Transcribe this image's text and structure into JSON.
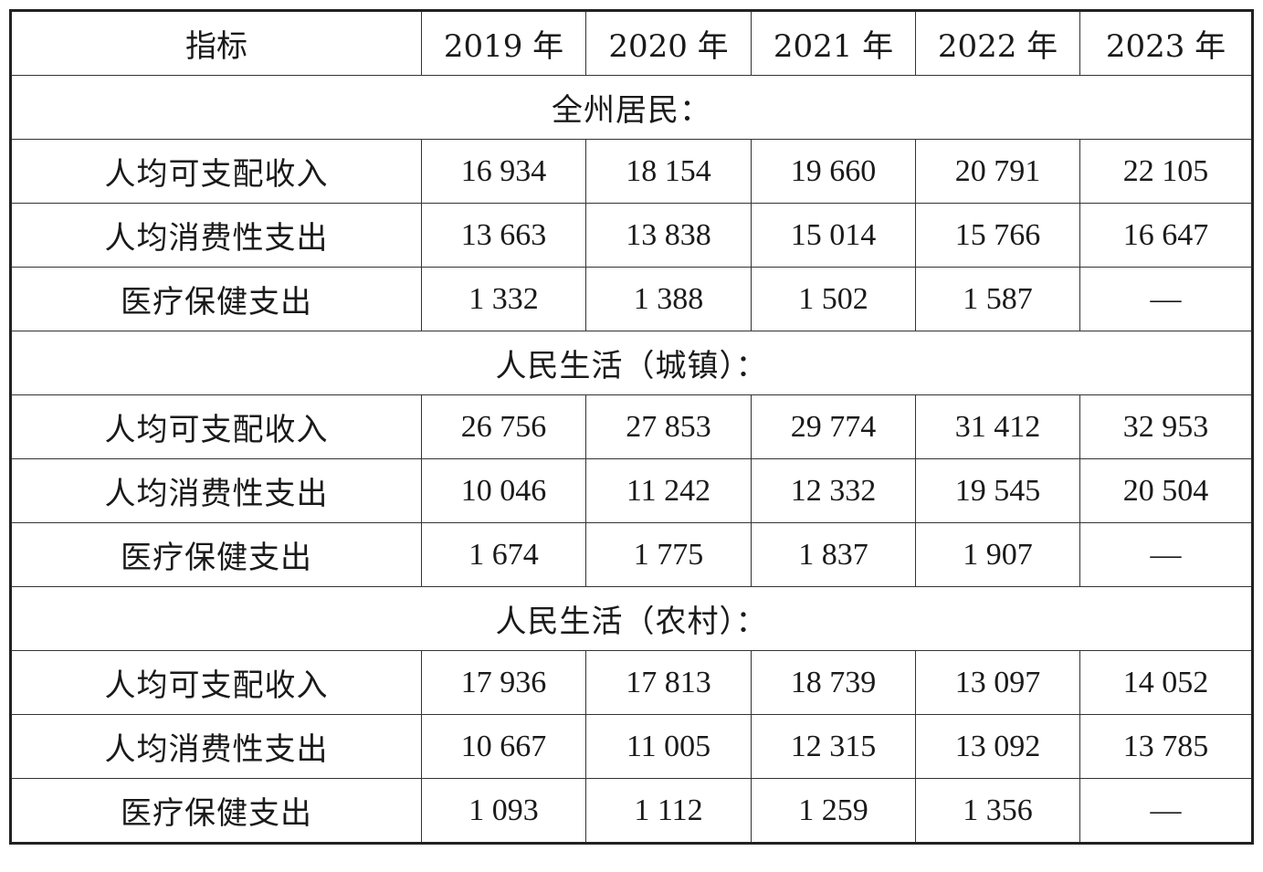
{
  "header": {
    "indicator": "指标",
    "years": [
      "2019 年",
      "2020 年",
      "2021 年",
      "2022 年",
      "2023 年"
    ]
  },
  "sections": [
    {
      "title": "全州居民：",
      "rows": [
        {
          "label": "人均可支配收入",
          "values": [
            "16 934",
            "18 154",
            "19 660",
            "20 791",
            "22 105"
          ]
        },
        {
          "label": "人均消费性支出",
          "values": [
            "13 663",
            "13 838",
            "15 014",
            "15 766",
            "16 647"
          ]
        },
        {
          "label": "医疗保健支出",
          "values": [
            "1 332",
            "1 388",
            "1 502",
            "1 587",
            "—"
          ]
        }
      ]
    },
    {
      "title": "人民生活（城镇）：",
      "rows": [
        {
          "label": "人均可支配收入",
          "values": [
            "26 756",
            "27 853",
            "29 774",
            "31 412",
            "32 953"
          ]
        },
        {
          "label": "人均消费性支出",
          "values": [
            "10 046",
            "11 242",
            "12 332",
            "19 545",
            "20 504"
          ]
        },
        {
          "label": "医疗保健支出",
          "values": [
            "1 674",
            "1 775",
            "1 837",
            "1 907",
            "—"
          ]
        }
      ]
    },
    {
      "title": "人民生活（农村）：",
      "rows": [
        {
          "label": "人均可支配收入",
          "values": [
            "17 936",
            "17 813",
            "18 739",
            "13 097",
            "14 052"
          ]
        },
        {
          "label": "人均消费性支出",
          "values": [
            "10 667",
            "11 005",
            "12 315",
            "13 092",
            "13 785"
          ]
        },
        {
          "label": "医疗保健支出",
          "values": [
            "1 093",
            "1 112",
            "1 259",
            "1 356",
            "—"
          ]
        }
      ]
    }
  ]
}
